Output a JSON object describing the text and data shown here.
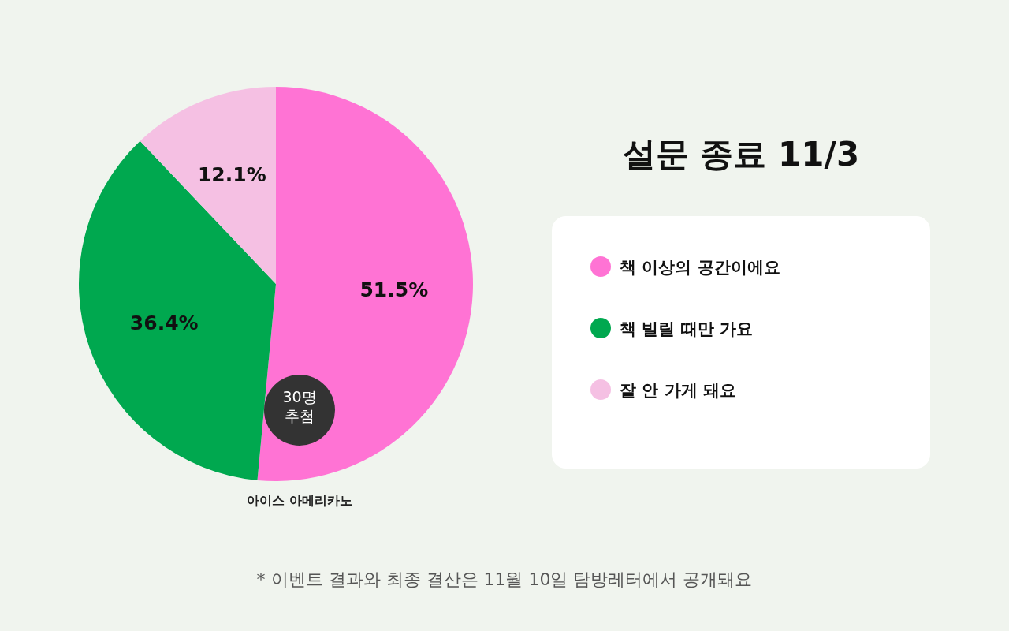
{
  "chart_data": {
    "type": "pie",
    "title": "설문 종료 11/3",
    "categories": [
      "책 이상의 공간이에요",
      "책 빌릴 때만 가요",
      "잘 안 가게 돼요"
    ],
    "values": [
      51.5,
      36.4,
      12.1
    ],
    "colors": [
      "#ff73d4",
      "#00a84f",
      "#f5c0e3"
    ],
    "value_labels": [
      "51.5%",
      "36.4%",
      "12.1%"
    ],
    "legend": "right",
    "annotations": [
      "30명 추첨",
      "아이스 아메리카노",
      "* 이벤트 결과와 최종 결산은 11월 10일 탐방레터에서 공개돼요"
    ]
  }
}
